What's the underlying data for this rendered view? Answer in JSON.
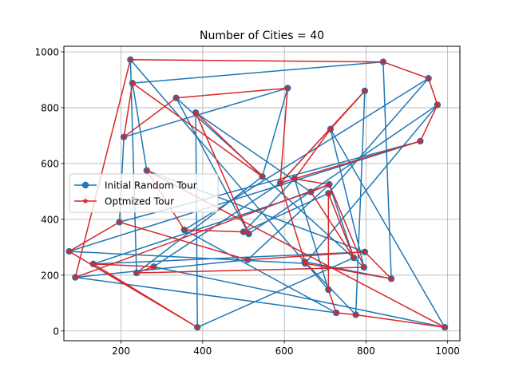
{
  "chart_data": {
    "type": "line",
    "title": "Number of Cities = 40",
    "xlabel": "",
    "ylabel": "",
    "xlim": [
      60,
      1030
    ],
    "ylim": [
      -35,
      1020
    ],
    "xticks": [
      200,
      400,
      600,
      800,
      1000
    ],
    "yticks": [
      0,
      200,
      400,
      600,
      800,
      1000
    ],
    "xtick_labels": [
      "200",
      "400",
      "600",
      "800",
      "1000"
    ],
    "ytick_labels": [
      "0",
      "200",
      "400",
      "600",
      "800",
      "1000"
    ],
    "grid": true,
    "legend_position": "center-left",
    "cities": [
      [
        223,
        972
      ],
      [
        228,
        888
      ],
      [
        207,
        695
      ],
      [
        263,
        575
      ],
      [
        335,
        835
      ],
      [
        383,
        782
      ],
      [
        608,
        870
      ],
      [
        842,
        964
      ],
      [
        953,
        905
      ],
      [
        975,
        810
      ],
      [
        797,
        860
      ],
      [
        713,
        723
      ],
      [
        933,
        680
      ],
      [
        546,
        553
      ],
      [
        625,
        545
      ],
      [
        590,
        530
      ],
      [
        710,
        525
      ],
      [
        665,
        498
      ],
      [
        708,
        493
      ],
      [
        196,
        390
      ],
      [
        355,
        362
      ],
      [
        500,
        355
      ],
      [
        513,
        348
      ],
      [
        797,
        283
      ],
      [
        770,
        262
      ],
      [
        510,
        255
      ],
      [
        651,
        242
      ],
      [
        795,
        228
      ],
      [
        73,
        285
      ],
      [
        132,
        240
      ],
      [
        280,
        230
      ],
      [
        238,
        208
      ],
      [
        88,
        192
      ],
      [
        862,
        187
      ],
      [
        708,
        148
      ],
      [
        727,
        65
      ],
      [
        775,
        58
      ],
      [
        387,
        13
      ],
      [
        993,
        13
      ],
      [
        650,
        248
      ]
    ],
    "series": [
      {
        "name": "Initial Random Tour",
        "color": "#1f77b4",
        "marker": "circle",
        "order": [
          0,
          31,
          13,
          6,
          2,
          19,
          12,
          28,
          26,
          9,
          22,
          4,
          27,
          11,
          38,
          30,
          15,
          10,
          36,
          39,
          33,
          7,
          1,
          3,
          23,
          29,
          17,
          5,
          37,
          24,
          16,
          25,
          32,
          35,
          20,
          8,
          18,
          21,
          14,
          34,
          0
        ]
      },
      {
        "name": "Optmized Tour",
        "color": "#d62728",
        "marker": "star",
        "order": [
          0,
          7,
          8,
          9,
          12,
          15,
          10,
          11,
          14,
          16,
          17,
          24,
          18,
          34,
          35,
          36,
          38,
          3,
          20,
          21,
          22,
          5,
          13,
          1,
          2,
          4,
          6,
          15,
          39,
          26,
          33,
          23,
          25,
          19,
          28,
          37,
          29,
          30,
          31,
          27,
          16,
          32,
          0
        ]
      }
    ]
  }
}
